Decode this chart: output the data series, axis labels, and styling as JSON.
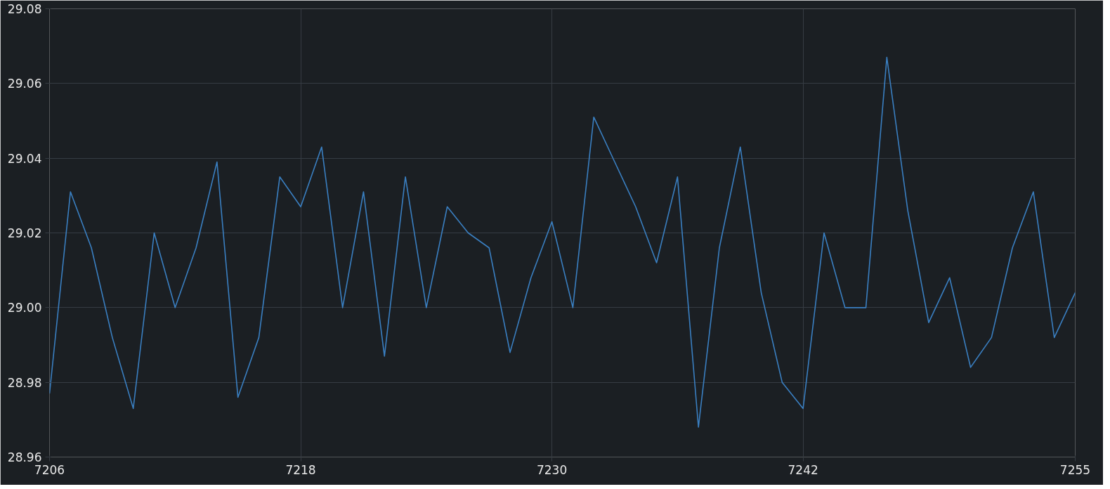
{
  "chart_data": {
    "type": "line",
    "x": [
      7206,
      7207,
      7208,
      7209,
      7210,
      7211,
      7212,
      7213,
      7214,
      7215,
      7216,
      7217,
      7218,
      7219,
      7220,
      7221,
      7222,
      7223,
      7224,
      7225,
      7226,
      7227,
      7228,
      7229,
      7230,
      7231,
      7232,
      7233,
      7234,
      7235,
      7236,
      7237,
      7238,
      7239,
      7240,
      7241,
      7242,
      7243,
      7244,
      7245,
      7246,
      7247,
      7248,
      7249,
      7250,
      7251,
      7252,
      7253,
      7254,
      7255
    ],
    "series": [
      {
        "color": "#3a7fc1",
        "values": [
          28.977,
          29.031,
          29.016,
          28.992,
          28.973,
          29.02,
          29.0,
          29.016,
          29.039,
          28.976,
          28.992,
          29.035,
          29.027,
          29.043,
          29.0,
          29.031,
          28.987,
          29.035,
          29.0,
          29.027,
          29.02,
          29.016,
          28.988,
          29.008,
          29.023,
          29.0,
          29.051,
          29.039,
          29.027,
          29.012,
          29.035,
          28.968,
          29.016,
          29.043,
          29.004,
          28.98,
          28.973,
          29.02,
          29.0,
          29.0,
          29.067,
          29.026,
          28.996,
          29.008,
          28.984,
          28.992,
          29.016,
          29.031,
          28.992,
          29.004
        ]
      }
    ],
    "xlim": [
      7206,
      7255
    ],
    "xticks": [
      7206,
      7218,
      7230,
      7242,
      7255
    ],
    "ylim": [
      28.96,
      29.08
    ],
    "yticks": [
      {
        "value": 28.96,
        "label": "28.96"
      },
      {
        "value": 28.98,
        "label": "28.98"
      },
      {
        "value": 29.0,
        "label": "29.00"
      },
      {
        "value": 29.02,
        "label": "29.02"
      },
      {
        "value": 29.04,
        "label": "29.04"
      },
      {
        "value": 29.06,
        "label": "29.06"
      },
      {
        "value": 29.08,
        "label": "29.08"
      }
    ],
    "grid": true,
    "marker": "none",
    "line_style": "solid"
  }
}
